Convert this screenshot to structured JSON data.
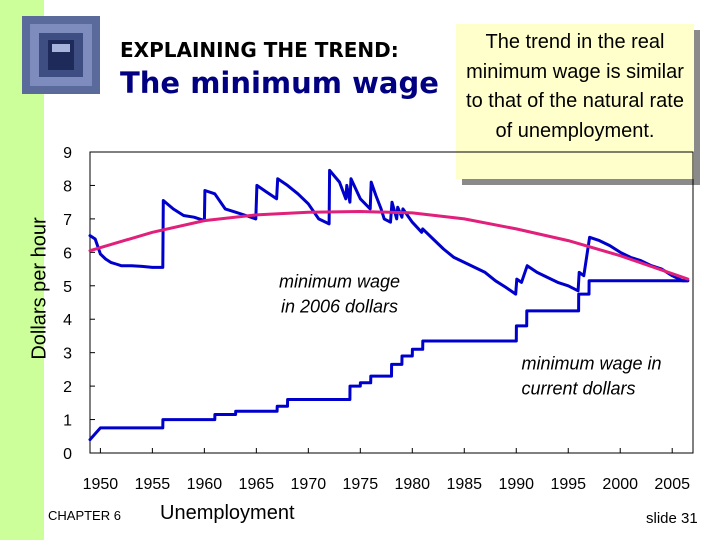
{
  "header": {
    "kicker": "EXPLAINING THE TREND:",
    "title": "The minimum wage"
  },
  "callout": {
    "text": "The trend in the real minimum wage is similar to that of the natural rate of unemployment."
  },
  "footer": {
    "chapter": "CHAPTER 6",
    "chapter_title": "Unemployment",
    "slide": "slide 31"
  },
  "colors": {
    "left_bar": "#ccff99",
    "title_blue": "#000080",
    "series_wage": "#0000cc",
    "trend_line": "#e0207a",
    "callout_bg": "#ffffcc"
  },
  "chart_data": {
    "type": "line",
    "title": "",
    "xlabel": "",
    "ylabel": "Dollars per hour",
    "xlim": [
      1949,
      2007
    ],
    "ylim": [
      0,
      9
    ],
    "x_ticks": [
      1950,
      1955,
      1960,
      1965,
      1970,
      1975,
      1980,
      1985,
      1990,
      1995,
      2000,
      2005
    ],
    "y_ticks": [
      0,
      1,
      2,
      3,
      4,
      5,
      6,
      7,
      8,
      9
    ],
    "grid": false,
    "legend": "none",
    "series": [
      {
        "name": "minimum wage in 2006 dollars",
        "color": "#0000cc",
        "points": [
          [
            1949,
            6.5
          ],
          [
            1949.5,
            6.4
          ],
          [
            1950,
            5.95
          ],
          [
            1950.5,
            5.8
          ],
          [
            1951,
            5.7
          ],
          [
            1951.5,
            5.65
          ],
          [
            1952,
            5.6
          ],
          [
            1953,
            5.6
          ],
          [
            1954,
            5.58
          ],
          [
            1955,
            5.55
          ],
          [
            1956,
            5.55
          ],
          [
            1956.05,
            7.55
          ],
          [
            1957,
            7.3
          ],
          [
            1958,
            7.1
          ],
          [
            1959,
            7.05
          ],
          [
            1960,
            6.95
          ],
          [
            1960.05,
            7.85
          ],
          [
            1961,
            7.75
          ],
          [
            1962,
            7.3
          ],
          [
            1963,
            7.2
          ],
          [
            1964,
            7.1
          ],
          [
            1964.95,
            7.0
          ],
          [
            1965.05,
            8.0
          ],
          [
            1966,
            7.8
          ],
          [
            1966.95,
            7.6
          ],
          [
            1967.05,
            8.2
          ],
          [
            1968,
            8.0
          ],
          [
            1969,
            7.75
          ],
          [
            1970,
            7.45
          ],
          [
            1971,
            7.0
          ],
          [
            1972,
            6.85
          ],
          [
            1972.05,
            8.45
          ],
          [
            1973,
            8.1
          ],
          [
            1973.6,
            7.6
          ],
          [
            1973.7,
            8.0
          ],
          [
            1974,
            7.5
          ],
          [
            1974.1,
            8.2
          ],
          [
            1975,
            7.6
          ],
          [
            1975.95,
            7.3
          ],
          [
            1976.05,
            8.1
          ],
          [
            1976.5,
            7.7
          ],
          [
            1977,
            7.3
          ],
          [
            1977.3,
            7.0
          ],
          [
            1977.9,
            6.9
          ],
          [
            1978.05,
            7.5
          ],
          [
            1978.5,
            7.0
          ],
          [
            1978.6,
            7.35
          ],
          [
            1979,
            7.05
          ],
          [
            1979.1,
            7.3
          ],
          [
            1980,
            6.9
          ],
          [
            1980.9,
            6.6
          ],
          [
            1981,
            6.7
          ],
          [
            1982,
            6.4
          ],
          [
            1983,
            6.1
          ],
          [
            1984,
            5.85
          ],
          [
            1985,
            5.7
          ],
          [
            1986,
            5.55
          ],
          [
            1987,
            5.4
          ],
          [
            1988,
            5.15
          ],
          [
            1989,
            4.95
          ],
          [
            1989.95,
            4.75
          ],
          [
            1990.05,
            5.2
          ],
          [
            1990.5,
            5.1
          ],
          [
            1991.05,
            5.6
          ],
          [
            1992,
            5.4
          ],
          [
            1993,
            5.25
          ],
          [
            1994,
            5.1
          ],
          [
            1995,
            5.0
          ],
          [
            1995.95,
            4.85
          ],
          [
            1996.05,
            5.4
          ],
          [
            1996.5,
            5.3
          ],
          [
            1997.05,
            6.45
          ],
          [
            1998,
            6.35
          ],
          [
            1999,
            6.2
          ],
          [
            2000,
            6.0
          ],
          [
            2001,
            5.85
          ],
          [
            2002,
            5.75
          ],
          [
            2003,
            5.6
          ],
          [
            2004,
            5.5
          ],
          [
            2005,
            5.3
          ],
          [
            2006,
            5.15
          ],
          [
            2006.5,
            5.15
          ]
        ]
      },
      {
        "name": "minimum wage in current dollars",
        "color": "#0000cc",
        "points": [
          [
            1949,
            0.4
          ],
          [
            1950,
            0.75
          ],
          [
            1956,
            0.75
          ],
          [
            1956.01,
            1.0
          ],
          [
            1961,
            1.0
          ],
          [
            1961.01,
            1.15
          ],
          [
            1963,
            1.15
          ],
          [
            1963.01,
            1.25
          ],
          [
            1967,
            1.25
          ],
          [
            1967.01,
            1.4
          ],
          [
            1968,
            1.4
          ],
          [
            1968.01,
            1.6
          ],
          [
            1974,
            1.6
          ],
          [
            1974.01,
            2.0
          ],
          [
            1975,
            2.0
          ],
          [
            1975.01,
            2.1
          ],
          [
            1976,
            2.1
          ],
          [
            1976.01,
            2.3
          ],
          [
            1978,
            2.3
          ],
          [
            1978.01,
            2.65
          ],
          [
            1979,
            2.65
          ],
          [
            1979.01,
            2.9
          ],
          [
            1980,
            2.9
          ],
          [
            1980.01,
            3.1
          ],
          [
            1981,
            3.1
          ],
          [
            1981.01,
            3.35
          ],
          [
            1990,
            3.35
          ],
          [
            1990.01,
            3.8
          ],
          [
            1991,
            3.8
          ],
          [
            1991.01,
            4.25
          ],
          [
            1996,
            4.25
          ],
          [
            1996.01,
            4.75
          ],
          [
            1997,
            4.75
          ],
          [
            1997.01,
            5.15
          ],
          [
            2006.5,
            5.15
          ]
        ]
      },
      {
        "name": "",
        "color": "#e0207a",
        "smooth": true,
        "points": [
          [
            1949,
            6.05
          ],
          [
            1955,
            6.6
          ],
          [
            1960,
            6.95
          ],
          [
            1965,
            7.12
          ],
          [
            1970,
            7.2
          ],
          [
            1975,
            7.22
          ],
          [
            1980,
            7.18
          ],
          [
            1985,
            7.0
          ],
          [
            1990,
            6.7
          ],
          [
            1995,
            6.35
          ],
          [
            2000,
            5.9
          ],
          [
            2006.5,
            5.2
          ]
        ]
      }
    ],
    "annotations": [
      {
        "text": "minimum wage in 2006 dollars",
        "lines": [
          "minimum wage",
          "in 2006 dollars"
        ],
        "x": 1973,
        "y": 4.95
      },
      {
        "text": "minimum wage in current dollars",
        "lines": [
          "minimum wage in",
          "current dollars"
        ],
        "x": 1990.5,
        "y": 2.5
      }
    ]
  }
}
